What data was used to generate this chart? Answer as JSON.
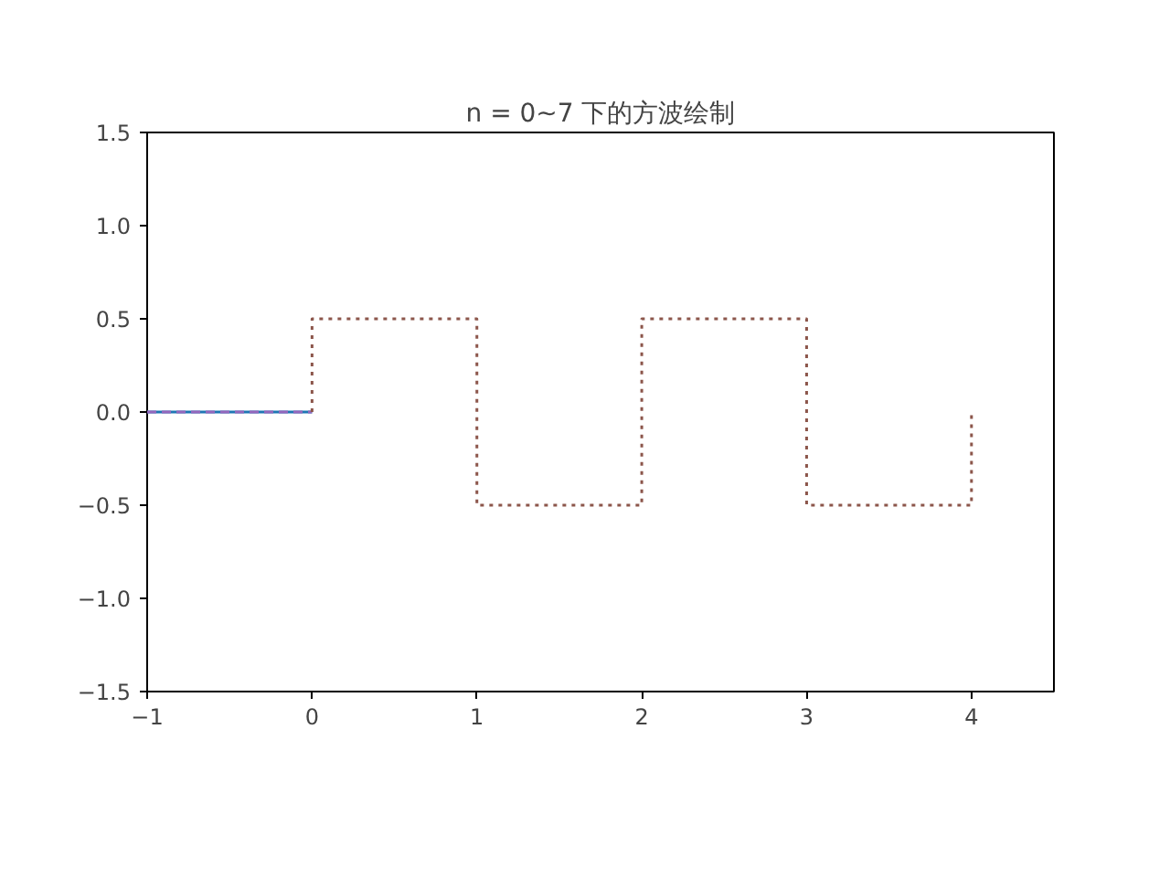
{
  "chart_data": {
    "type": "line",
    "title": "n = 0~7 下的方波绘制",
    "xlim": [
      -1,
      4.5
    ],
    "xticks": [
      -1,
      0,
      1,
      2,
      3,
      4
    ],
    "ylim": [
      -1.5,
      1.5
    ],
    "yticks": [
      -1.5,
      {
        "value": -1,
        "label": "−1.0"
      },
      -0.5,
      {
        "value": 0,
        "label": "0.0"
      },
      0.5,
      {
        "value": 1,
        "label": "1.0"
      },
      1.5
    ],
    "grid": false,
    "marker": "none",
    "series": [
      {
        "color": "#1f77b4",
        "line_style": "solid",
        "x": [
          -1,
          0
        ],
        "values": [
          0,
          0
        ]
      },
      {
        "color": "#9467bd",
        "line_style": "dashed",
        "x": [
          -1,
          0
        ],
        "values": [
          0,
          0
        ]
      },
      {
        "color": "#8c564b",
        "line_style": "dotted",
        "x": [
          0,
          0,
          1,
          1,
          2,
          2,
          3,
          3,
          4,
          4
        ],
        "values": [
          0,
          0.5,
          0.5,
          -0.5,
          -0.5,
          0.5,
          0.5,
          -0.5,
          -0.5,
          0
        ]
      }
    ]
  }
}
